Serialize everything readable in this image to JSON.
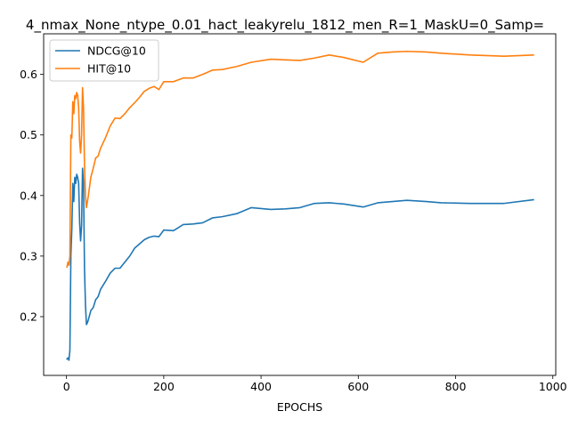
{
  "chart_data": {
    "type": "line",
    "title": "4_nmax_None_ntype_0.01_hact_leakyrelu_1812_men_R=1_MaskU=0_Samp=",
    "xlabel": "EPOCHS",
    "ylabel": "",
    "xlim": [
      -47,
      1006
    ],
    "ylim": [
      0.103,
      0.667
    ],
    "xticks": [
      0,
      200,
      400,
      600,
      800,
      1000
    ],
    "yticks": [
      0.2,
      0.3,
      0.4,
      0.5,
      0.6
    ],
    "xtick_labels": [
      "0",
      "200",
      "400",
      "600",
      "800",
      "1000"
    ],
    "ytick_labels": [
      "0.2",
      "0.3",
      "0.4",
      "0.5",
      "0.6"
    ],
    "grid": false,
    "legend_position": "top-left",
    "series": [
      {
        "name": "NDCG@10",
        "color": "#1f77b4",
        "x": [
          1,
          3,
          5,
          7,
          9,
          11,
          13,
          15,
          17,
          19,
          21,
          23,
          25,
          27,
          29,
          31,
          33,
          35,
          37,
          39,
          41,
          43,
          45,
          50,
          55,
          60,
          65,
          70,
          80,
          90,
          100,
          110,
          120,
          130,
          140,
          150,
          160,
          170,
          180,
          190,
          200,
          220,
          240,
          260,
          280,
          300,
          320,
          350,
          380,
          420,
          450,
          480,
          510,
          540,
          570,
          610,
          640,
          670,
          700,
          740,
          770,
          830,
          900,
          960
        ],
        "y": [
          0.13,
          0.132,
          0.128,
          0.145,
          0.3,
          0.345,
          0.42,
          0.39,
          0.43,
          0.42,
          0.435,
          0.43,
          0.42,
          0.355,
          0.325,
          0.35,
          0.445,
          0.42,
          0.28,
          0.22,
          0.187,
          0.19,
          0.195,
          0.21,
          0.215,
          0.228,
          0.233,
          0.245,
          0.258,
          0.272,
          0.28,
          0.28,
          0.29,
          0.3,
          0.313,
          0.32,
          0.327,
          0.331,
          0.333,
          0.332,
          0.343,
          0.342,
          0.352,
          0.353,
          0.355,
          0.363,
          0.365,
          0.37,
          0.38,
          0.377,
          0.378,
          0.38,
          0.387,
          0.388,
          0.386,
          0.381,
          0.388,
          0.39,
          0.392,
          0.39,
          0.388,
          0.387,
          0.387,
          0.393
        ]
      },
      {
        "name": "HIT@10",
        "color": "#ff7f0e",
        "x": [
          1,
          3,
          5,
          7,
          9,
          11,
          13,
          15,
          17,
          19,
          21,
          23,
          25,
          27,
          29,
          31,
          33,
          35,
          37,
          39,
          41,
          43,
          45,
          50,
          55,
          60,
          65,
          70,
          80,
          90,
          100,
          110,
          120,
          130,
          140,
          150,
          160,
          170,
          180,
          190,
          200,
          220,
          240,
          260,
          280,
          300,
          320,
          350,
          380,
          420,
          450,
          480,
          510,
          540,
          570,
          610,
          640,
          670,
          700,
          740,
          770,
          830,
          900,
          960
        ],
        "y": [
          0.282,
          0.29,
          0.285,
          0.3,
          0.5,
          0.495,
          0.555,
          0.535,
          0.565,
          0.56,
          0.57,
          0.565,
          0.545,
          0.49,
          0.47,
          0.5,
          0.578,
          0.545,
          0.45,
          0.4,
          0.38,
          0.39,
          0.4,
          0.43,
          0.445,
          0.462,
          0.465,
          0.478,
          0.495,
          0.515,
          0.528,
          0.527,
          0.535,
          0.545,
          0.553,
          0.562,
          0.572,
          0.577,
          0.58,
          0.575,
          0.588,
          0.588,
          0.594,
          0.594,
          0.6,
          0.607,
          0.608,
          0.613,
          0.62,
          0.625,
          0.624,
          0.623,
          0.627,
          0.632,
          0.628,
          0.62,
          0.635,
          0.637,
          0.638,
          0.637,
          0.635,
          0.632,
          0.63,
          0.632
        ]
      }
    ]
  }
}
